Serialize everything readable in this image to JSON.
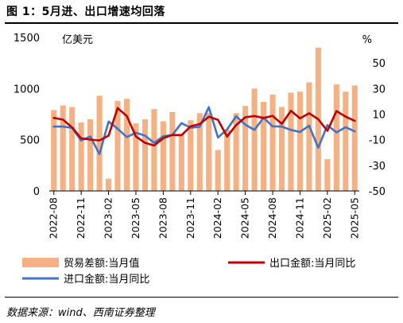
{
  "title": "图 1：5月进、出口增速均回落",
  "source": "数据来源：wind、西南证券整理",
  "chart_data": {
    "type": "bar",
    "left_unit": "亿美元",
    "right_unit": "%",
    "left_ylim": [
      0,
      1500
    ],
    "left_ticks": [
      "0",
      "500",
      "1000",
      "1500"
    ],
    "right_ylim": [
      -50,
      70
    ],
    "right_ticks": [
      "-50",
      "-30",
      "-10",
      "10",
      "30",
      "50"
    ],
    "grid": false,
    "legend_position": "bottom",
    "x": [
      "2022-08",
      "2022-09",
      "2022-10",
      "2022-11",
      "2022-12",
      "2023-01",
      "2023-02",
      "2023-03",
      "2023-04",
      "2023-05",
      "2023-06",
      "2023-07",
      "2023-08",
      "2023-09",
      "2023-10",
      "2023-11",
      "2023-12",
      "2024-01",
      "2024-02",
      "2024-03",
      "2024-04",
      "2024-05",
      "2024-06",
      "2024-07",
      "2024-08",
      "2024-09",
      "2024-10",
      "2024-11",
      "2024-12",
      "2025-01",
      "2025-02",
      "2025-03",
      "2025-04",
      "2025-05"
    ],
    "x_tick_labels": [
      "2022-08",
      "2022-11",
      "2023-02",
      "2023-05",
      "2023-08",
      "2023-11",
      "2024-02",
      "2024-05",
      "2024-08",
      "2024-11",
      "2025-02",
      "2025-05"
    ],
    "series": [
      {
        "name": "贸易差额:当月值",
        "kind": "bar",
        "axis": "left",
        "color": "#f4b183",
        "values": [
          790,
          835,
          820,
          670,
          700,
          930,
          120,
          880,
          900,
          660,
          700,
          800,
          680,
          770,
          560,
          690,
          760,
          760,
          400,
          600,
          760,
          830,
          1000,
          870,
          940,
          820,
          960,
          970,
          1060,
          1400,
          310,
          1040,
          970,
          1030
        ]
      },
      {
        "name": "出口金额:当月同比",
        "kind": "line",
        "axis": "right",
        "color": "#c00000",
        "values": [
          7.1,
          5.7,
          -0.3,
          -8.9,
          -9.9,
          -10.5,
          -6.8,
          14.8,
          8.5,
          -7.5,
          -12.4,
          -14.5,
          -8.8,
          -6.2,
          -6.4,
          0.5,
          2.3,
          8.0,
          5.6,
          -7.5,
          1.5,
          7.6,
          8.6,
          7.0,
          8.7,
          2.4,
          12.7,
          6.7,
          10.7,
          6.0,
          -3.0,
          12.4,
          8.1,
          4.8
        ]
      },
      {
        "name": "进口金额:当月同比",
        "kind": "line",
        "axis": "right",
        "color": "#4472c4",
        "values": [
          0.3,
          0.3,
          -0.7,
          -10.6,
          -7.5,
          -21.3,
          4.2,
          -1.4,
          -7.9,
          -4.5,
          -6.8,
          -12.4,
          -7.3,
          -6.2,
          3.0,
          -0.6,
          0.2,
          15.5,
          -8.2,
          -1.9,
          8.4,
          1.8,
          -2.3,
          7.2,
          0.5,
          0.3,
          -2.3,
          -3.9,
          1.0,
          -16.3,
          1.5,
          -4.3,
          -0.2,
          -3.4
        ]
      }
    ]
  }
}
